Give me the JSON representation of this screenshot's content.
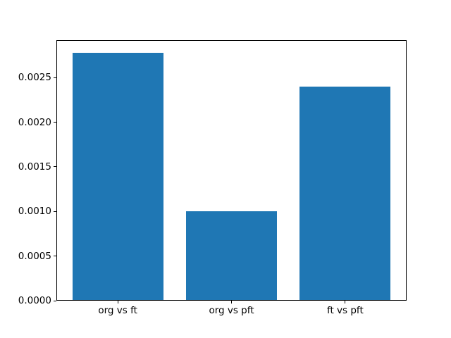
{
  "chart_data": {
    "type": "bar",
    "title": "",
    "xlabel": "",
    "ylabel": "",
    "categories": [
      "org vs ft",
      "org vs pft",
      "ft vs pft"
    ],
    "values": [
      0.00278,
      0.001,
      0.0024
    ],
    "bar_color": "#1f77b4",
    "bar_width_fraction": 0.8,
    "xlim": [
      -0.54,
      2.54
    ],
    "ylim": [
      0,
      0.00292
    ],
    "yticks": [
      0.0,
      0.0005,
      0.001,
      0.0015,
      0.002,
      0.0025
    ],
    "ytick_labels": [
      "0.0000",
      "0.0005",
      "0.0010",
      "0.0015",
      "0.0020",
      "0.0025"
    ],
    "grid": false,
    "legend": "none",
    "spine_color": "#000000",
    "background_color": "#ffffff"
  }
}
